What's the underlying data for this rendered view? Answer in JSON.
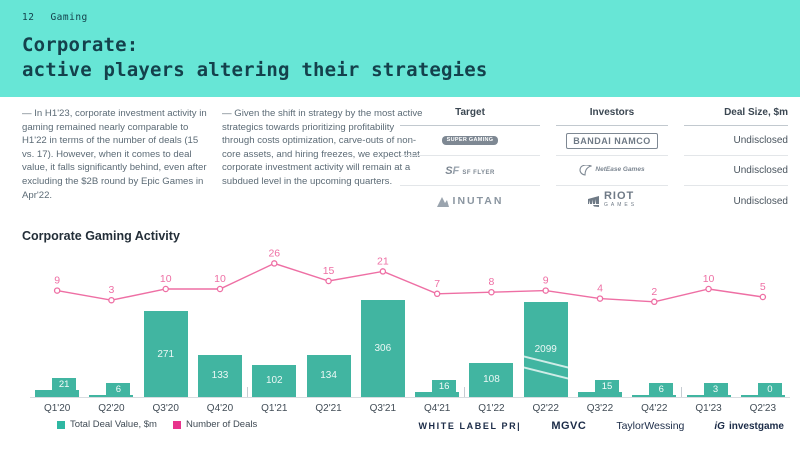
{
  "page_header": {
    "page_number": "12",
    "section": "Gaming",
    "title_line1": "Corporate:",
    "title_line2": "active players altering their strategies"
  },
  "commentary": {
    "col1": "— In H1'23, corporate investment activity in gaming remained nearly comparable to H1'22 in terms of the number of deals (15 vs. 17). However, when it comes to deal value, it falls significantly behind, even after excluding the $2B round by Epic Games in Apr'22.",
    "col2": "— Given the shift in strategy by the most active strategics towards prioritizing profitability through costs optimization, carve-outs of non-core assets, and hiring freezes, we expect that corporate investment activity will remain at a subdued level in the upcoming quarters."
  },
  "deals_table": {
    "headers": [
      "Target",
      "Investors",
      "Deal Size, $m"
    ],
    "rows": [
      {
        "target": "SUPER GAMING",
        "investor": "BANDAI NAMCO",
        "deal_size": "Undisclosed"
      },
      {
        "target": "SF FLYER",
        "investor": "NetEase Games",
        "deal_size": "Undisclosed"
      },
      {
        "target": "INUTAN",
        "investor": "RIOT GAMES",
        "deal_size": "Undisclosed"
      }
    ]
  },
  "chart_heading": "Corporate Gaming Activity",
  "chart_data": {
    "type": "bar",
    "combo": "bar+line",
    "title": "Corporate Gaming Activity",
    "categories": [
      "Q1'20",
      "Q2'20",
      "Q3'20",
      "Q4'20",
      "Q1'21",
      "Q2'21",
      "Q3'21",
      "Q4'21",
      "Q1'22",
      "Q2'22",
      "Q3'22",
      "Q4'22",
      "Q1'23",
      "Q2'23"
    ],
    "series": [
      {
        "name": "Total Deal Value, $m",
        "type": "bar",
        "color": "#41B5A1",
        "values": [
          21,
          6,
          271,
          133,
          102,
          134,
          306,
          16,
          108,
          2099,
          15,
          6,
          3,
          0
        ]
      },
      {
        "name": "Number of Deals",
        "type": "line",
        "color": "#EE6FA4",
        "values": [
          9,
          3,
          10,
          10,
          26,
          15,
          21,
          7,
          8,
          9,
          4,
          2,
          10,
          5
        ]
      }
    ],
    "bar_break_value": 2099,
    "year_separators_after_index": [
      3,
      7,
      11
    ],
    "legend_position": "bottom-left",
    "grid": false,
    "xlabel": "",
    "ylabel": ""
  },
  "legend": [
    {
      "label": "Total Deal Value, $m",
      "color": "#2EB7A2"
    },
    {
      "label": "Number of Deals",
      "color": "#E8338C"
    }
  ],
  "footer_logos": {
    "white_label_pr": "WHITE LABEL PR|",
    "mgvc": "MGVC",
    "taylor_wessing": "TaylorWessing",
    "investgame_mark": "iG",
    "investgame": "investgame"
  },
  "colors": {
    "header_bg": "#67E6D6",
    "title_text": "#14414C",
    "bar": "#41B5A1",
    "line": "#EE6FA4",
    "axis": "#D8DCE0"
  }
}
